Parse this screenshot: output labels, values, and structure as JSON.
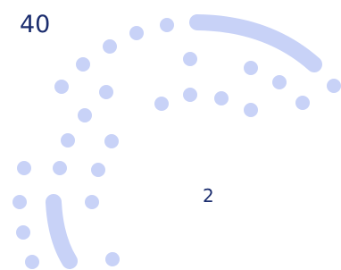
{
  "header": {
    "value": "40"
  },
  "badge": {
    "text": "2"
  }
}
